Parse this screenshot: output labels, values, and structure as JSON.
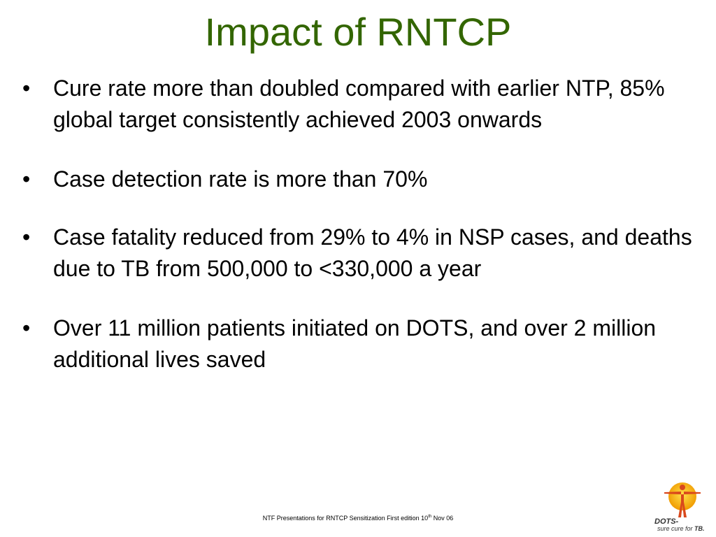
{
  "slide": {
    "title": "Impact of RNTCP",
    "bullets": [
      {
        "marker": "•",
        "text": "Cure rate more than doubled compared with earlier NTP, 85% global target consistently achieved 2003 onwards"
      },
      {
        "marker": "•",
        "text": "Case detection rate is more than 70%"
      },
      {
        "marker": "•",
        "text": "Case fatality reduced from 29% to 4% in NSP cases, and deaths due to TB from 500,000 to <330,000 a year"
      },
      {
        "marker": "•",
        "text": "Over 11 million patients initiated on DOTS, and over 2 million additional lives saved"
      }
    ]
  },
  "footer": {
    "text_before": "NTF Presentations for RNTCP Sensitization First edition 10",
    "superscript": "th",
    "text_after": " Nov 06"
  },
  "logo": {
    "brand": "DOTS-",
    "tagline_prefix": "sure cure for ",
    "tagline_bold": "TB.",
    "icon": "human-figure-sun-icon",
    "colors": {
      "sun": "#f5c800",
      "sun_edge": "#f09a00",
      "figure": "#d9481c"
    }
  },
  "colors": {
    "title": "#336600",
    "text": "#000000",
    "background": "#ffffff"
  }
}
